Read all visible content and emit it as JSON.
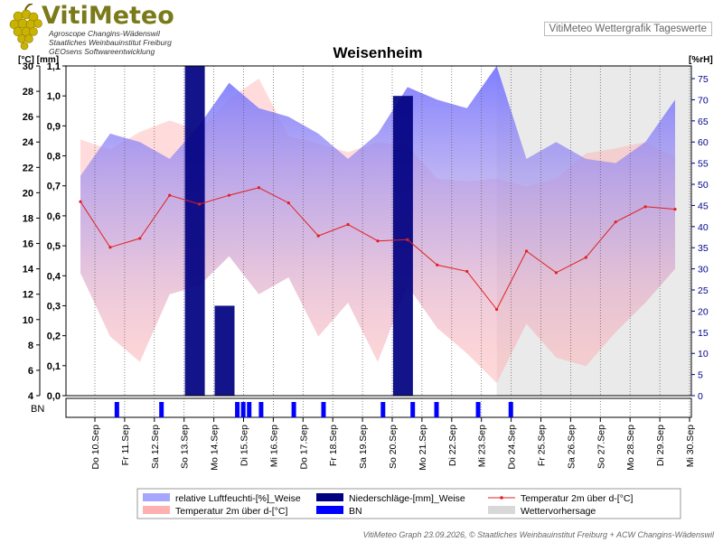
{
  "header": {
    "logo_text": "VitiMeteo",
    "logo_lines": [
      "Agroscope Changins-Wädenswil",
      "Staatliches Weinbauinstitut Freiburg",
      "GEOsens Softwareentwicklung"
    ],
    "badge": "VitiMeteo Wettergrafik Tageswerte"
  },
  "footer": "VitiMeteo Graph 23.09.2026, © Staatliches Weinbauinstitut Freiburg + ACW Changins-Wädenswil",
  "colors": {
    "humidity": "#8080ff",
    "precip": "#000080",
    "temp_line": "#e02020",
    "temp_band": "#ffb0b0",
    "bn": "#0000ff",
    "forecast": "#d8d8d8"
  },
  "chart_data": {
    "type": "line",
    "title": "Weisenheim",
    "ylabel_left": "[°C] [mm]",
    "ylabel_right": "[%rH]",
    "x": [
      "Do 10.Sep",
      "Fr 11.Sep",
      "Sa 12.Sep",
      "So 13.Sep",
      "Mo 14.Sep",
      "Di 15.Sep",
      "Mi 16.Sep",
      "Do 17.Sep",
      "Fr 18.Sep",
      "Sa 19.Sep",
      "So 20.Sep",
      "Mo 21.Sep",
      "Di 22.Sep",
      "Mi 23.Sep",
      "Do 24.Sep",
      "Fr 25.Sep",
      "Sa 26.Sep",
      "So 27.Sep",
      "Mo 28.Sep",
      "Di 29.Sep",
      "Mi 30.Sep"
    ],
    "temp_axis": {
      "min": 4,
      "max": 30,
      "ticks": [
        4,
        6,
        8,
        10,
        12,
        14,
        16,
        18,
        20,
        22,
        24,
        26,
        28,
        30
      ]
    },
    "precip_axis": {
      "min": 0,
      "max": 1.1,
      "ticks": [
        "0,0",
        "0,1",
        "0,2",
        "0,3",
        "0,4",
        "0,5",
        "0,6",
        "0,7",
        "0,8",
        "0,9",
        "1,0",
        "1,1"
      ]
    },
    "humidity_axis": {
      "min": 0,
      "max": 78,
      "ticks": [
        0,
        5,
        10,
        15,
        20,
        25,
        30,
        35,
        40,
        45,
        50,
        55,
        60,
        65,
        70,
        75
      ]
    },
    "series": [
      {
        "name": "relative Luftfeuchti-[%]_Weise",
        "type": "area",
        "max": [
          52,
          62,
          60,
          56,
          64,
          74,
          68,
          66,
          62,
          56,
          62,
          73,
          70,
          68,
          78,
          56,
          60,
          56,
          55,
          60,
          70
        ],
        "min": [
          29,
          14,
          8,
          24,
          26,
          33,
          24,
          28,
          14,
          22,
          8,
          26,
          16,
          10,
          3,
          17,
          9,
          7,
          15,
          22,
          30
        ]
      },
      {
        "name": "Temperatur 2m über d-[°C]",
        "type": "line",
        "values": [
          19.3,
          15.7,
          16.4,
          19.8,
          19.1,
          19.8,
          20.4,
          19.2,
          16.6,
          17.5,
          16.2,
          16.3,
          14.3,
          13.8,
          10.8,
          15.4,
          13.7,
          14.9,
          17.7,
          18.9,
          18.7
        ]
      },
      {
        "name": "Temperatur 2m über d-[°C]",
        "type": "band",
        "max": [
          24.2,
          23.4,
          24.8,
          25.7,
          24.9,
          27.4,
          29.0,
          24.5,
          23.9,
          23.2,
          24.0,
          23.7,
          21.1,
          20.9,
          21.1,
          20.5,
          21.1,
          23.1,
          23.5,
          24.0,
          22.8
        ]
      },
      {
        "name": "Niederschläge-[mm]_Weise",
        "type": "bar",
        "bars": [
          {
            "day": 4,
            "value": 1.1
          },
          {
            "day": 5,
            "value": 0.3
          },
          {
            "day": 11,
            "value": 1.0
          }
        ]
      },
      {
        "name": "BN",
        "type": "events",
        "positions": [
          1.15,
          2.65,
          5.2,
          5.4,
          5.6,
          6.0,
          7.1,
          8.1,
          10.1,
          11.1,
          11.9,
          13.3,
          14.4
        ]
      },
      {
        "name": "Wettervorhersage",
        "type": "range",
        "from": 14,
        "to": 20.6
      }
    ],
    "grid": "vertical dotted lines at each day",
    "legend_placement": "bottom"
  }
}
